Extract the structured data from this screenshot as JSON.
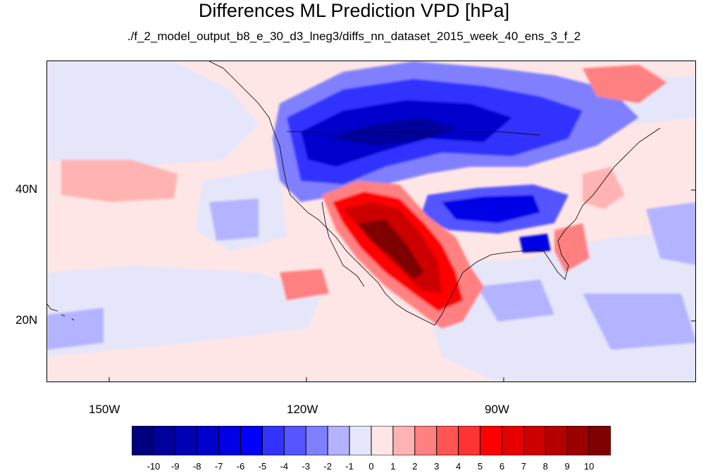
{
  "title": "Differences ML Prediction VPD [hPa]",
  "subtitle": "./f_2_model_output_b8_e_30_d3_lneg3/diffs_nn_dataset_2015_week_40_ens_3_f_2",
  "map": {
    "projection": "cylindrical equidistant",
    "lon_range": [
      -159.4,
      -60.6
    ],
    "lat_range": [
      10,
      59
    ],
    "lon_ticks": [
      "150W",
      "120W",
      "90W"
    ],
    "lat_ticks": [
      "40N",
      "20N"
    ]
  },
  "colorbar": {
    "labels": [
      "-10",
      "-9",
      "-8",
      "-7",
      "-6",
      "-5",
      "-4",
      "-3",
      "-2",
      "-1",
      "0",
      "1",
      "2",
      "3",
      "4",
      "5",
      "6",
      "7",
      "8",
      "9",
      "10"
    ],
    "colors": [
      "#00007f",
      "#00009b",
      "#0000b4",
      "#0000cd",
      "#0000e6",
      "#0000ff",
      "#3333ff",
      "#5555ff",
      "#8080ff",
      "#b3b3ff",
      "#e6e6fa",
      "#ffe6e6",
      "#ffb3b3",
      "#ff8080",
      "#ff5555",
      "#ff3333",
      "#ff0000",
      "#e60000",
      "#cd0000",
      "#b40000",
      "#9b0000",
      "#7f0000"
    ]
  }
}
